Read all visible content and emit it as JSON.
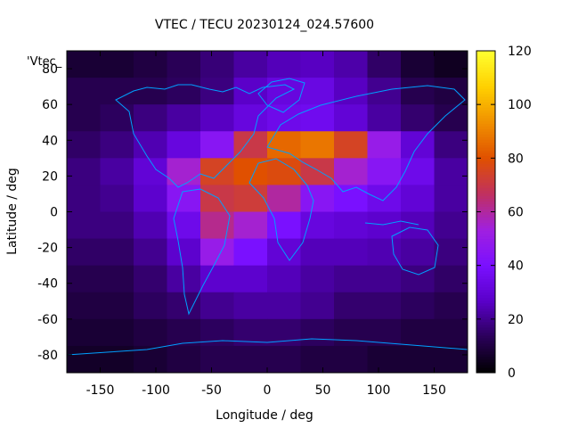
{
  "chart_data": {
    "type": "heatmap",
    "title": "VTEC / TECU 20230124_024.57600",
    "xlabel": "Longitude / deg",
    "ylabel": "Latitude / deg",
    "key_label": "'Vtec_",
    "xlim": [
      -180,
      180
    ],
    "ylim": [
      -90,
      90
    ],
    "xticks": [
      -150,
      -100,
      -50,
      0,
      50,
      100,
      150
    ],
    "yticks": [
      -80,
      -60,
      -40,
      -20,
      0,
      20,
      40,
      60,
      80
    ],
    "colorbar": {
      "range": [
        0,
        120
      ],
      "ticks": [
        0,
        20,
        40,
        60,
        80,
        100,
        120
      ],
      "colors": [
        "#000000",
        "#2a0058",
        "#5a00c8",
        "#7a10ff",
        "#a020e0",
        "#c03060",
        "#e05000",
        "#f09000",
        "#ffd000",
        "#ffff30"
      ]
    },
    "grid": {
      "lon_step": 30,
      "lat_step": 15,
      "lon_start": -180,
      "lat_start": 90,
      "values": [
        [
          8,
          8,
          10,
          13,
          17,
          22,
          25,
          26,
          23,
          15,
          8,
          5
        ],
        [
          12,
          12,
          12,
          14,
          18,
          27,
          32,
          33,
          26,
          20,
          12,
          10
        ],
        [
          12,
          14,
          18,
          22,
          26,
          32,
          35,
          36,
          30,
          22,
          16,
          12
        ],
        [
          15,
          18,
          24,
          32,
          45,
          70,
          85,
          88,
          75,
          50,
          30,
          18
        ],
        [
          18,
          22,
          30,
          55,
          75,
          80,
          78,
          70,
          55,
          45,
          35,
          22
        ],
        [
          18,
          20,
          28,
          45,
          70,
          72,
          60,
          45,
          40,
          35,
          30,
          22
        ],
        [
          18,
          18,
          24,
          35,
          62,
          55,
          40,
          32,
          30,
          28,
          25,
          20
        ],
        [
          15,
          15,
          20,
          28,
          50,
          40,
          30,
          25,
          25,
          24,
          22,
          18
        ],
        [
          12,
          12,
          16,
          22,
          28,
          28,
          25,
          22,
          20,
          20,
          18,
          15
        ],
        [
          10,
          10,
          14,
          16,
          20,
          22,
          22,
          20,
          16,
          16,
          14,
          12
        ],
        [
          8,
          8,
          10,
          12,
          14,
          16,
          16,
          14,
          12,
          12,
          10,
          10
        ],
        [
          6,
          6,
          8,
          10,
          12,
          12,
          12,
          10,
          10,
          8,
          8,
          8
        ]
      ]
    }
  }
}
